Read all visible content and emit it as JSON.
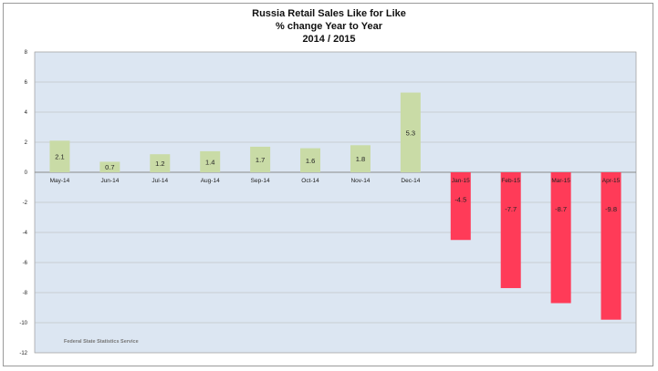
{
  "chart_data": {
    "type": "bar",
    "title_lines": [
      "Russia Retail Sales Like for Like",
      "% change Year to Year",
      "2014 / 2015"
    ],
    "categories": [
      "May-14",
      "Jun-14",
      "Jul-14",
      "Aug-14",
      "Sep-14",
      "Oct-14",
      "Nov-14",
      "Dec-14",
      "Jan-15",
      "Feb-15",
      "Mar-15",
      "Apr-15"
    ],
    "values": [
      2.1,
      0.7,
      1.2,
      1.4,
      1.7,
      1.6,
      1.8,
      5.3,
      -4.5,
      -7.7,
      -8.7,
      -9.8
    ],
    "data_labels": [
      "2.1",
      "0.7",
      "1.2",
      "1.4",
      "1.7",
      "1.6",
      "1.8",
      "5.3",
      "-4.5",
      "-7.7",
      "-8.7",
      "-9.8"
    ],
    "ylim": [
      -12,
      8
    ],
    "yticks": [
      -12,
      -10,
      -8,
      -6,
      -4,
      -2,
      0,
      2,
      4,
      6,
      8
    ],
    "grid": true,
    "positive_color": "#c9dba6",
    "negative_color": "#ff3b58",
    "plot_background": "#dce6f2",
    "source_note": "Federal State Statistics Service"
  }
}
